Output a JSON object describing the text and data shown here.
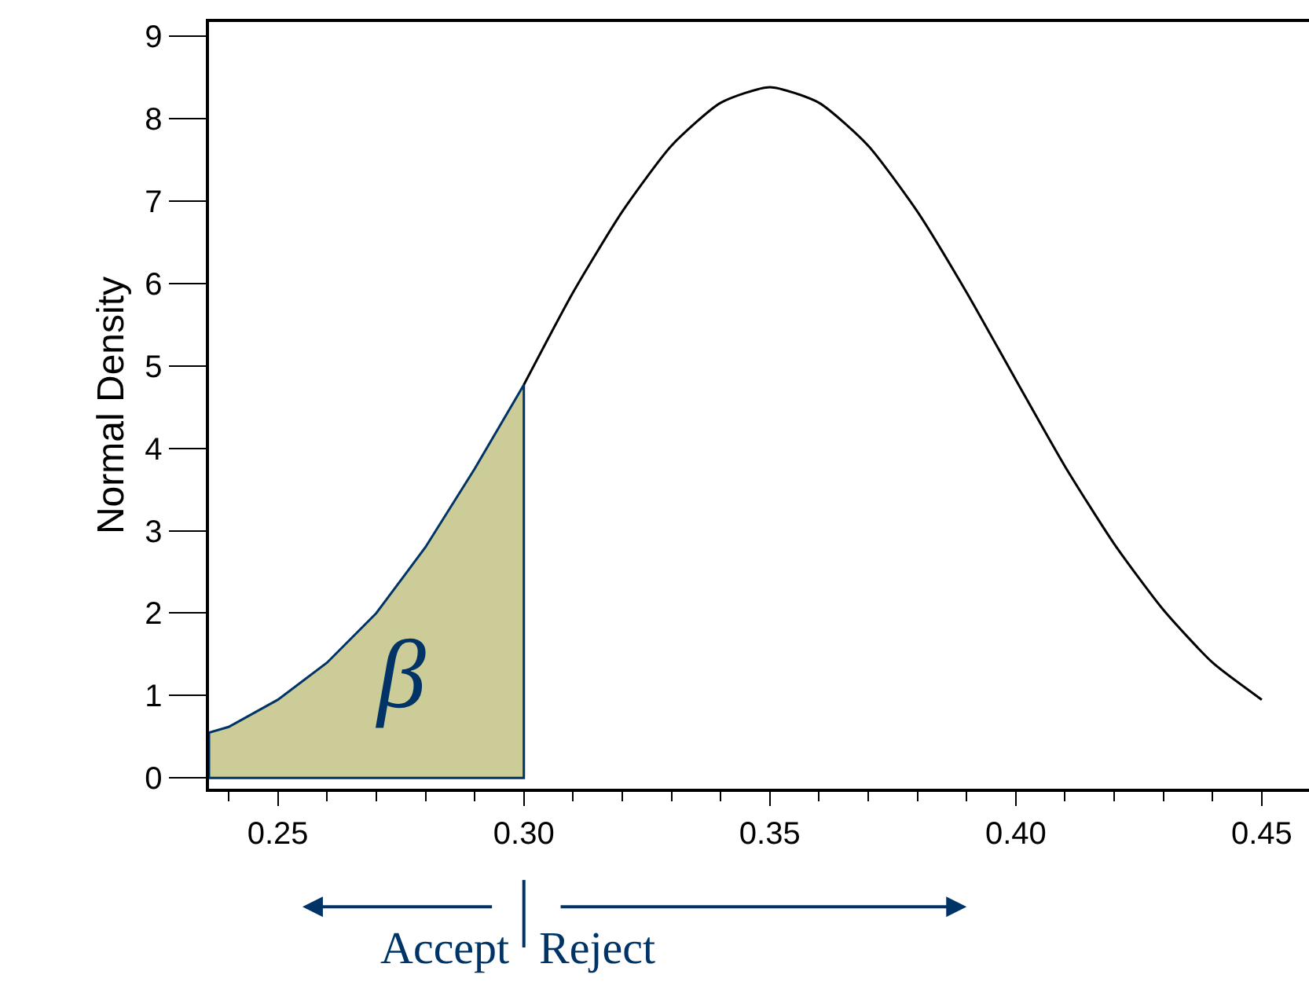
{
  "chart_data": {
    "type": "line",
    "ylabel": "Normal Density",
    "xlim": [
      0.236,
      0.4596
    ],
    "ylim": [
      -0.13,
      9.17
    ],
    "xticks": [
      {
        "value": 0.24,
        "label": null
      },
      0.25,
      {
        "value": 0.26,
        "label": null
      },
      {
        "value": 0.27,
        "label": null
      },
      {
        "value": 0.28,
        "label": null
      },
      {
        "value": 0.29,
        "label": null
      },
      {
        "value": 0.3,
        "label": "0.30"
      },
      {
        "value": 0.31,
        "label": null
      },
      {
        "value": 0.32,
        "label": null
      },
      {
        "value": 0.33,
        "label": null
      },
      {
        "value": 0.34,
        "label": null
      },
      0.35,
      {
        "value": 0.36,
        "label": null
      },
      {
        "value": 0.37,
        "label": null
      },
      {
        "value": 0.38,
        "label": null
      },
      {
        "value": 0.39,
        "label": null
      },
      {
        "value": 0.4,
        "label": "0.40"
      },
      {
        "value": 0.41,
        "label": null
      },
      {
        "value": 0.42,
        "label": null
      },
      {
        "value": 0.43,
        "label": null
      },
      {
        "value": 0.44,
        "label": null
      },
      0.45
    ],
    "yticks": [
      0,
      1,
      2,
      3,
      4,
      5,
      6,
      7,
      8,
      9
    ],
    "marker": "none",
    "line_style": "solid",
    "series": [
      {
        "type": "area",
        "color": "#cccc99",
        "x": [
          0.236,
          0.24,
          0.25,
          0.26,
          0.27,
          0.28,
          0.29,
          0.3
        ],
        "values": [
          0.55,
          0.62,
          0.95,
          1.4,
          2.0,
          2.8,
          3.75,
          4.77
        ]
      },
      {
        "color": "#000000",
        "x": [
          0.3,
          0.31,
          0.32,
          0.33,
          0.34,
          0.35,
          0.36,
          0.37,
          0.38,
          0.39,
          0.4,
          0.41,
          0.42,
          0.43,
          0.44,
          0.45
        ],
        "values": [
          4.77,
          5.89,
          6.87,
          7.67,
          8.19,
          8.38,
          8.19,
          7.67,
          6.87,
          5.89,
          4.83,
          3.78,
          2.84,
          2.04,
          1.4,
          0.95
        ]
      }
    ],
    "annotations": [
      "β",
      "Accept",
      "Reject"
    ]
  }
}
